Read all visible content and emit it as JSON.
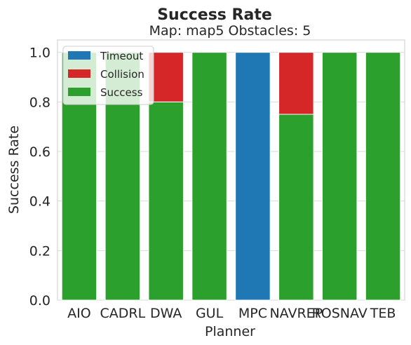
{
  "chart_data": {
    "type": "bar",
    "stacked": true,
    "title": "Success Rate",
    "subtitle": "Map: map5 Obstacles: 5",
    "xlabel": "Planner",
    "ylabel": "Success Rate",
    "ylim": [
      0,
      1.05
    ],
    "yticks": [
      "0.0",
      "0.2",
      "0.4",
      "0.6",
      "0.8",
      "1.0"
    ],
    "grid": true,
    "legend": "top-left",
    "categories": [
      "AIO",
      "CADRL",
      "DWA",
      "GUL",
      "MPC",
      "NAVREP",
      "ROSNAV",
      "TEB"
    ],
    "series": [
      {
        "name": "Timeout",
        "color": "#1f77b4",
        "values": [
          0,
          0,
          0,
          0,
          1.0,
          0,
          0,
          0
        ]
      },
      {
        "name": "Collision",
        "color": "#d62728",
        "values": [
          0,
          0,
          0.2,
          0,
          0,
          0.25,
          0,
          0
        ]
      },
      {
        "name": "Success",
        "color": "#2ca02c",
        "values": [
          1.0,
          1.0,
          0.8,
          1.0,
          0,
          0.75,
          1.0,
          1.0
        ]
      }
    ]
  }
}
